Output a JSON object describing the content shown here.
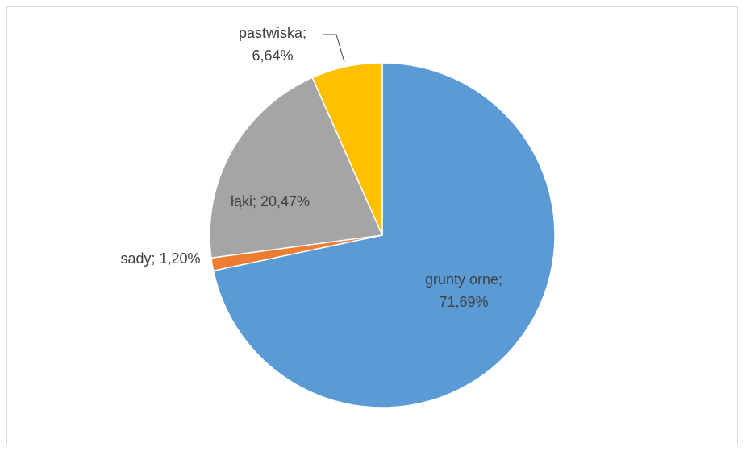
{
  "chart_data": {
    "type": "pie",
    "title": "",
    "slices": [
      {
        "name": "grunty orne",
        "value": 71.69,
        "label_line1": "grunty orne;",
        "label_line2": "71,69%",
        "color": "#5b9bd5"
      },
      {
        "name": "sady",
        "value": 1.2,
        "label_line1": "sady; 1,20%",
        "label_line2": "",
        "color": "#ed7d31"
      },
      {
        "name": "łąki",
        "value": 20.47,
        "label_line1": "łąki; 20,47%",
        "label_line2": "",
        "color": "#a5a5a5"
      },
      {
        "name": "pastwiska",
        "value": 6.64,
        "label_line1": "pastwiska;",
        "label_line2": "6,64%",
        "color": "#ffc000"
      }
    ],
    "start_angle_deg": 0,
    "direction": "clockwise",
    "legend": "none",
    "frame_border_color": "#d9d9d9",
    "label_color": "#404040",
    "slice_border_color": "#ffffff"
  }
}
